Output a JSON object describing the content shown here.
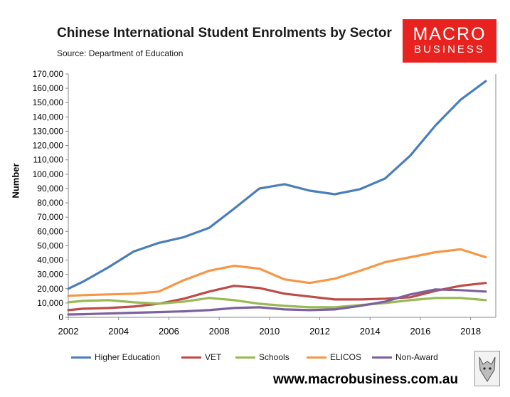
{
  "header": {
    "title": "Chinese International Student Enrolments by Sector",
    "source": "Source: Department of Education"
  },
  "logo": {
    "line1": "MACRO",
    "line2": "BUSINESS",
    "color": "#e8231f"
  },
  "footer": {
    "url": "www.macrobusiness.com.au"
  },
  "chart_data": {
    "type": "line",
    "title": "Chinese International Student Enrolments by Sector",
    "xlabel": "",
    "ylabel": "Number",
    "x": [
      2002,
      2003,
      2004,
      2005,
      2006,
      2007,
      2008,
      2009,
      2010,
      2011,
      2012,
      2013,
      2014,
      2015,
      2016,
      2017,
      2018,
      2019
    ],
    "xlim": [
      2002,
      2019
    ],
    "xticks": [
      "2002",
      "2004",
      "2006",
      "2008",
      "2010",
      "2012",
      "2014",
      "2016",
      "2018"
    ],
    "xtick_values": [
      2002,
      2004,
      2006,
      2008,
      2010,
      2012,
      2014,
      2016,
      2018
    ],
    "ylim": [
      0,
      170000
    ],
    "yticks": [
      "0",
      "10,000",
      "20,000",
      "30,000",
      "40,000",
      "50,000",
      "60,000",
      "70,000",
      "80,000",
      "90,000",
      "100,000",
      "110,000",
      "120,000",
      "130,000",
      "140,000",
      "150,000",
      "160,000",
      "170,000"
    ],
    "ytick_values": [
      0,
      10000,
      20000,
      30000,
      40000,
      50000,
      60000,
      70000,
      80000,
      90000,
      100000,
      110000,
      120000,
      130000,
      140000,
      150000,
      160000,
      170000
    ],
    "series": [
      {
        "name": "Higher Education",
        "color": "#4a7ebb",
        "x": [
          2002.0,
          2002.6,
          2003.6,
          2004.6,
          2005.6,
          2006.6,
          2007.6,
          2008.6,
          2009.6,
          2010.6,
          2011.6,
          2012.6,
          2013.6,
          2014.6,
          2015.6,
          2016.6,
          2017.6,
          2018.6
        ],
        "values": [
          20000,
          25000,
          35000,
          46000,
          52000,
          56000,
          62500,
          76000,
          90000,
          93000,
          88500,
          86000,
          89500,
          97000,
          113000,
          134000,
          152000,
          165000
        ]
      },
      {
        "name": "VET",
        "color": "#be4b48",
        "x": [
          2002.0,
          2002.6,
          2003.6,
          2004.6,
          2005.6,
          2006.6,
          2007.6,
          2008.6,
          2009.6,
          2010.6,
          2011.6,
          2012.6,
          2013.6,
          2014.6,
          2015.6,
          2016.6,
          2017.6,
          2018.6
        ],
        "values": [
          5000,
          6000,
          6500,
          7500,
          9500,
          13000,
          18000,
          22000,
          20500,
          16500,
          14500,
          12500,
          12500,
          13000,
          14000,
          18500,
          22000,
          24000
        ]
      },
      {
        "name": "Schools",
        "color": "#98b954",
        "x": [
          2002.0,
          2002.6,
          2003.6,
          2004.6,
          2005.6,
          2006.6,
          2007.6,
          2008.6,
          2009.6,
          2010.6,
          2011.6,
          2012.6,
          2013.6,
          2014.6,
          2015.6,
          2016.6,
          2017.6,
          2018.6
        ],
        "values": [
          10500,
          11500,
          12000,
          10500,
          9500,
          11000,
          13500,
          12000,
          9500,
          8000,
          7000,
          7000,
          8500,
          10000,
          12000,
          13500,
          13500,
          12000
        ]
      },
      {
        "name": "ELICOS",
        "color": "#f79646",
        "x": [
          2002.0,
          2002.6,
          2003.6,
          2004.6,
          2005.6,
          2006.6,
          2007.6,
          2008.6,
          2009.6,
          2010.6,
          2011.6,
          2012.6,
          2013.6,
          2014.6,
          2015.6,
          2016.6,
          2017.6,
          2018.6
        ],
        "values": [
          15000,
          15500,
          16000,
          16500,
          18000,
          26000,
          32500,
          36000,
          34000,
          26500,
          24000,
          27000,
          32500,
          38500,
          42000,
          45500,
          47500,
          42000
        ]
      },
      {
        "name": "Non-Award",
        "color": "#7d60a0",
        "x": [
          2002.0,
          2002.6,
          2003.6,
          2004.6,
          2005.6,
          2006.6,
          2007.6,
          2008.6,
          2009.6,
          2010.6,
          2011.6,
          2012.6,
          2013.6,
          2014.6,
          2015.6,
          2016.6,
          2017.6,
          2018.6
        ],
        "values": [
          2000,
          2200,
          2700,
          3200,
          3700,
          4200,
          5000,
          6500,
          7000,
          5500,
          5000,
          5500,
          8000,
          11000,
          16000,
          19500,
          19000,
          18000
        ]
      }
    ],
    "legend": "bottom",
    "grid": false
  }
}
